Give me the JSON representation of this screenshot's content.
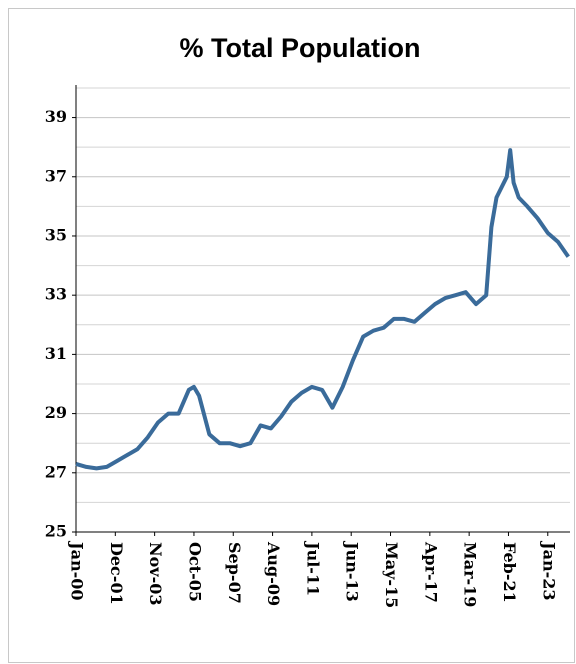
{
  "chart_data": {
    "type": "line",
    "title": "% Total Population",
    "x": [
      "Jan-00",
      "Jul-00",
      "Jan-01",
      "Jul-01",
      "Jan-02",
      "Jul-02",
      "Jan-03",
      "Jul-03",
      "Jan-04",
      "Jul-04",
      "Jan-05",
      "Jul-05",
      "Oct-05",
      "Jan-06",
      "Jul-06",
      "Jan-07",
      "Jul-07",
      "Jan-08",
      "Jul-08",
      "Jan-09",
      "Jul-09",
      "Jan-10",
      "Jul-10",
      "Jan-11",
      "Jul-11",
      "Jan-12",
      "Jul-12",
      "Jan-13",
      "Jul-13",
      "Jan-14",
      "Jul-14",
      "Jan-15",
      "Jul-15",
      "Jan-16",
      "Jul-16",
      "Jan-17",
      "Jul-17",
      "Jan-18",
      "Jul-18",
      "Jan-19",
      "Jul-19",
      "Jan-20",
      "Apr-20",
      "Jul-20",
      "Jan-21",
      "Mar-21",
      "May-21",
      "Aug-21",
      "Jan-22",
      "Jul-22",
      "Jan-23",
      "Jul-23",
      "Jan-24"
    ],
    "series": [
      {
        "name": "% Total Population",
        "color": "#3a6b9a",
        "values": [
          27.3,
          27.2,
          27.15,
          27.2,
          27.4,
          27.6,
          27.8,
          28.2,
          28.7,
          29.0,
          29.0,
          29.8,
          29.9,
          29.6,
          28.3,
          28.0,
          28.0,
          27.9,
          28.0,
          28.6,
          28.5,
          28.9,
          29.4,
          29.7,
          29.9,
          29.8,
          29.2,
          29.9,
          30.8,
          31.6,
          31.8,
          31.9,
          32.2,
          32.2,
          32.1,
          32.4,
          32.7,
          32.9,
          33.0,
          33.1,
          32.7,
          33.0,
          35.3,
          36.3,
          37.0,
          37.9,
          36.8,
          36.3,
          36.0,
          35.6,
          35.1,
          34.8,
          34.3
        ]
      }
    ],
    "xlim": [
      "Jan-00",
      "Feb-24"
    ],
    "xticks": [
      "Jan-00",
      "Dec-01",
      "Nov-03",
      "Oct-05",
      "Sep-07",
      "Aug-09",
      "Jul-11",
      "Jun-13",
      "May-15",
      "Apr-17",
      "Mar-19",
      "Feb-21",
      "Jan-23"
    ],
    "ylim": [
      25,
      40.1
    ],
    "yticks": [
      25,
      27,
      29,
      31,
      33,
      35,
      37,
      39
    ],
    "minor_yticks": [
      26,
      28,
      30,
      32,
      34,
      36,
      38,
      40
    ],
    "grid": true
  }
}
